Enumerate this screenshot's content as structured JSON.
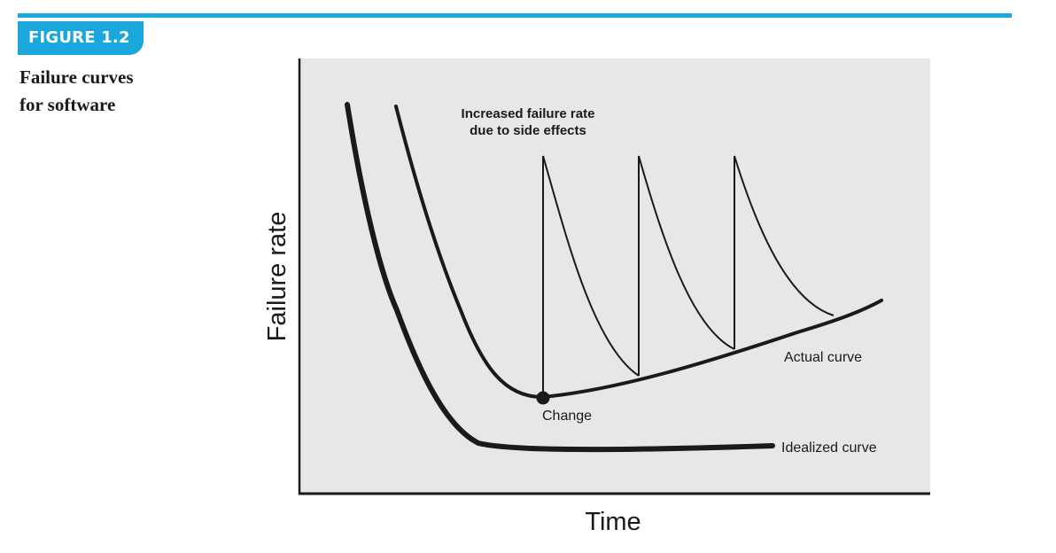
{
  "header": {
    "figure_label": "FIGURE 1.2",
    "caption_line1": "Failure curves",
    "caption_line2": "for software"
  },
  "diagram": {
    "annotation_line1": "Increased failure rate",
    "annotation_line2": "due to side effects",
    "actual_curve_label": "Actual curve",
    "idealized_curve_label": "Idealized curve",
    "change_label": "Change",
    "y_axis_label": "Failure rate",
    "x_axis_label": "Time"
  },
  "colors": {
    "accent": "#1aa7dc",
    "plot_background": "#e6e7e8",
    "ink": "#1a1a1a"
  }
}
